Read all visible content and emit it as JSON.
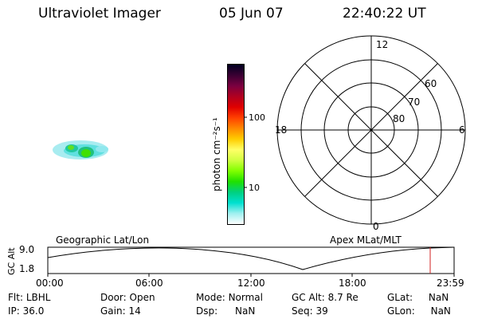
{
  "header": {
    "instrument": "Ultraviolet Imager",
    "date": "05 Jun 07",
    "time": "22:40:22 UT"
  },
  "colorbar": {
    "unit_label": "photon cm⁻²s⁻¹",
    "tick_labels": [
      "100",
      "10"
    ],
    "colors": [
      "#000020",
      "#3a0033",
      "#7a0040",
      "#b00020",
      "#e00000",
      "#ff4000",
      "#ff8800",
      "#ffcc00",
      "#ffff66",
      "#d0ff40",
      "#80ff00",
      "#20e000",
      "#00d080",
      "#00e0d0",
      "#a0f0f0",
      "#ffffff"
    ]
  },
  "polar_plot": {
    "mlt_labels": {
      "top": "12",
      "left": "18",
      "right": "6",
      "bottom": "0"
    },
    "lat_labels": [
      "60",
      "70",
      "80"
    ]
  },
  "timeline": {
    "left_label": "Geographic Lat/Lon",
    "right_label": "Apex MLat/MLT",
    "y_axis_title": "GC Alt",
    "y_ticks": [
      "9.0",
      "1.8"
    ],
    "x_ticks": [
      "00:00",
      "06:00",
      "12:00",
      "18:00",
      "23:59"
    ],
    "marker_color": "#d02020"
  },
  "status": {
    "row1": [
      {
        "label": "Flt:",
        "value": "LBHL"
      },
      {
        "label": "Door:",
        "value": "Open"
      },
      {
        "label": "Mode:",
        "value": "Normal"
      },
      {
        "label": "GC Alt:",
        "value": "8.7 Re"
      },
      {
        "label": "GLat:",
        "value": "NaN"
      }
    ],
    "row2": [
      {
        "label": "IP:",
        "value": "36.0"
      },
      {
        "label": "Gain:",
        "value": "14"
      },
      {
        "label": "Dsp:",
        "value": "NaN"
      },
      {
        "label": "Seq:",
        "value": "39"
      },
      {
        "label": "GLon:",
        "value": "NaN"
      }
    ]
  }
}
